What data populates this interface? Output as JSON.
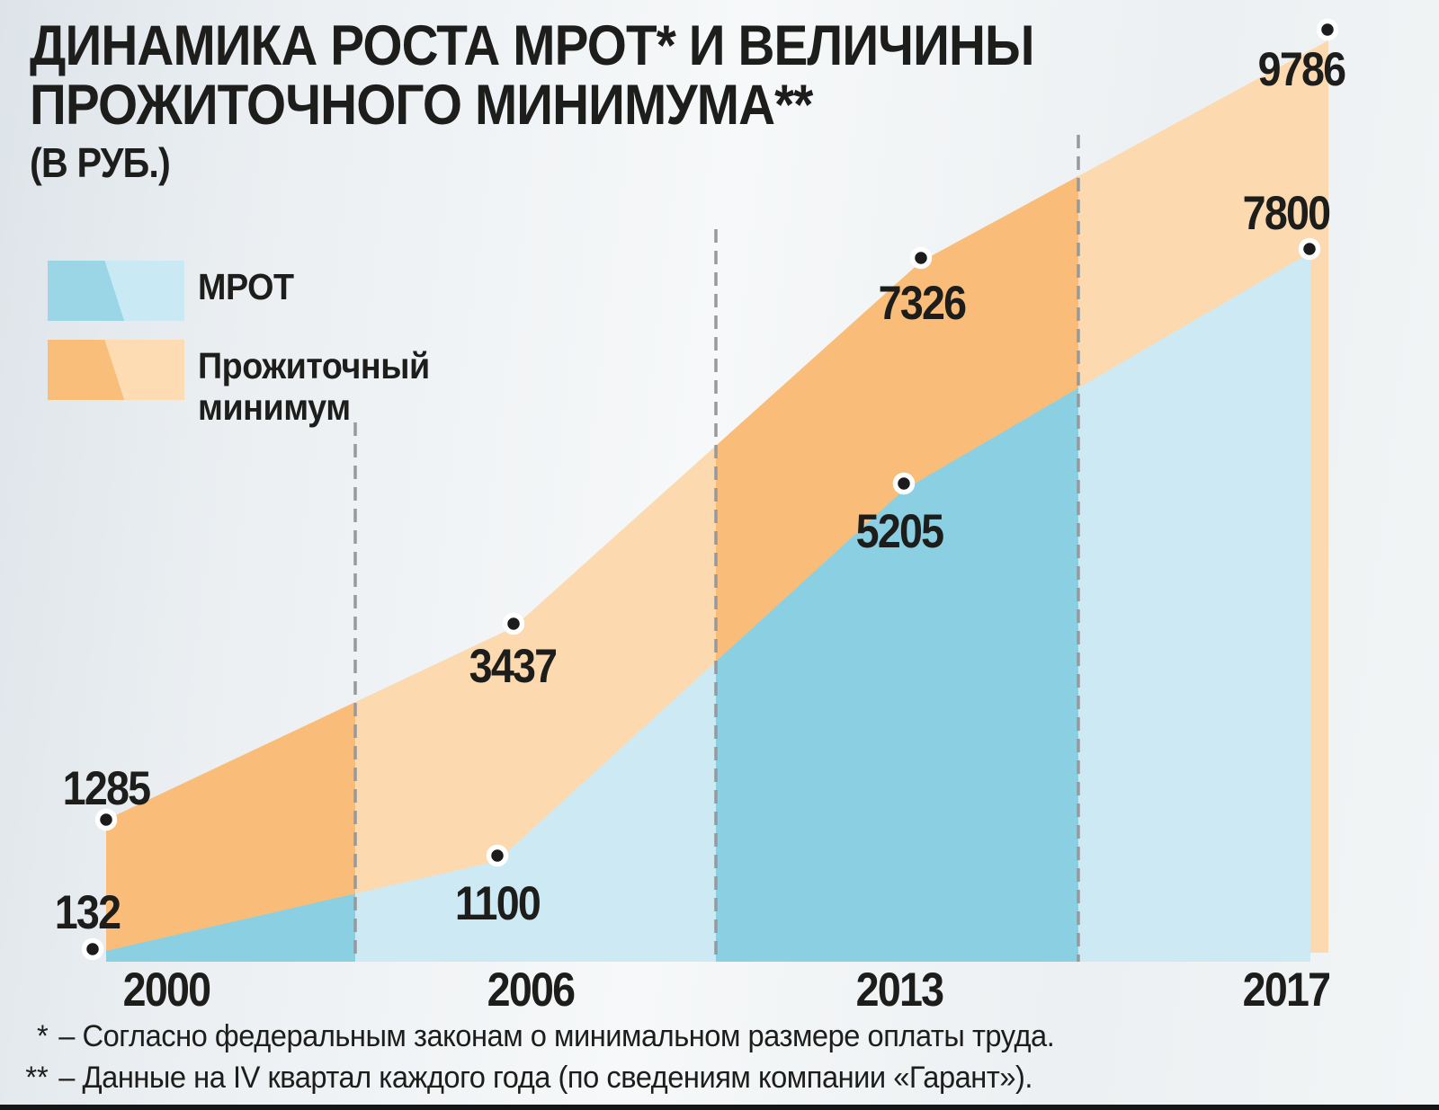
{
  "title": {
    "line1": "ДИНАМИКА РОСТА МРОТ* И ВЕЛИЧИНЫ",
    "line2": "ПРОЖИТОЧНОГО МИНИМУМА**",
    "unit": "(В РУБ.)"
  },
  "legend": {
    "items": [
      {
        "label": "МРОТ"
      },
      {
        "label": "Прожиточный минимум"
      }
    ]
  },
  "footnotes": [
    {
      "marker": "*",
      "text": "– Согласно федеральным законам о минимальном размере оплаты труда."
    },
    {
      "marker": "**",
      "text": "– Данные на IV квартал каждого года (по сведениям компании «Гарант»)."
    }
  ],
  "chart_data": {
    "type": "area",
    "categories": [
      "2000",
      "2006",
      "2013",
      "2017"
    ],
    "series": [
      {
        "name": "МРОТ",
        "values": [
          132,
          1100,
          5205,
          7800
        ],
        "color_dark": "#8bcfe2",
        "color_light": "#cdeaf4"
      },
      {
        "name": "Прожиточный минимум",
        "values": [
          1285,
          3437,
          7326,
          9786
        ],
        "color_dark": "#f9bd79",
        "color_light": "#fcd9ae"
      }
    ],
    "title": "ДИНАМИКА РОСТА МРОТ* И ВЕЛИЧИНЫ ПРОЖИТОЧНОГО МИНИМУМА**",
    "unit": "РУБ.",
    "ylim": [
      0,
      10000
    ],
    "legend_position": "top-left",
    "grid": "dashed-vertical-separators",
    "marker_color": "#1c1c1c",
    "marker_ring_color": "#ffffff",
    "dash_color": "#97999c",
    "bottom_rule_color": "#161616"
  }
}
